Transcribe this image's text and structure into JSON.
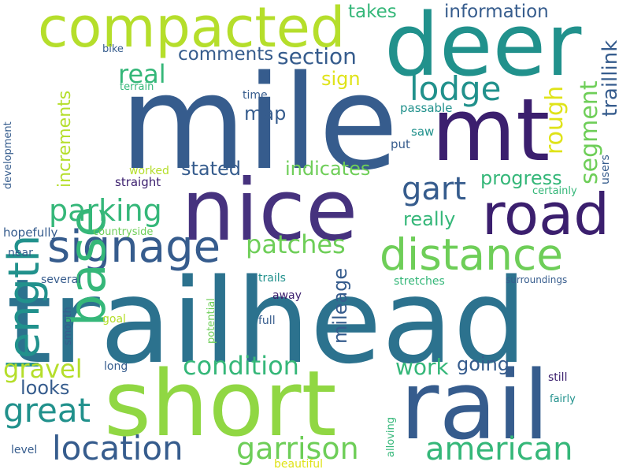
{
  "palette": {
    "navy": "#3b1f6e",
    "indigo": "#46327e",
    "blue": "#365c8d",
    "steel": "#2c728e",
    "teal": "#21918c",
    "green": "#35b779",
    "lime": "#6ece58",
    "yellowgreen": "#90d743",
    "yellow": "#b5de2b",
    "gold": "#dfe318",
    "background": "#ffffff"
  },
  "words": [
    {
      "text": "trailhead",
      "color": "steel"
    },
    {
      "text": "mile",
      "color": "blue"
    },
    {
      "text": "nice",
      "color": "indigo"
    },
    {
      "text": "short",
      "color": "yellowgreen"
    },
    {
      "text": "rail",
      "color": "blue"
    },
    {
      "text": "deer",
      "color": "teal"
    },
    {
      "text": "mt",
      "color": "navy"
    },
    {
      "text": "compacted",
      "color": "yellow"
    },
    {
      "text": "road",
      "color": "navy"
    },
    {
      "text": "signage",
      "color": "blue"
    },
    {
      "text": "distance",
      "color": "lime"
    },
    {
      "text": "length",
      "color": "teal"
    },
    {
      "text": "base",
      "color": "green"
    },
    {
      "text": "location",
      "color": "blue"
    },
    {
      "text": "american",
      "color": "green"
    },
    {
      "text": "garrison",
      "color": "lime"
    },
    {
      "text": "great",
      "color": "teal"
    },
    {
      "text": "parking",
      "color": "green"
    },
    {
      "text": "gart",
      "color": "blue"
    },
    {
      "text": "lodge",
      "color": "teal"
    },
    {
      "text": "condition",
      "color": "green"
    },
    {
      "text": "patches",
      "color": "lime"
    },
    {
      "text": "gravel",
      "color": "yellow"
    },
    {
      "text": "real",
      "color": "green"
    },
    {
      "text": "section",
      "color": "blue"
    },
    {
      "text": "segment",
      "color": "lime"
    },
    {
      "text": "rough",
      "color": "gold"
    },
    {
      "text": "comments",
      "color": "blue"
    },
    {
      "text": "information",
      "color": "blue"
    },
    {
      "text": "takes",
      "color": "green"
    },
    {
      "text": "traillink",
      "color": "blue"
    },
    {
      "text": "work",
      "color": "green"
    },
    {
      "text": "progress",
      "color": "green"
    },
    {
      "text": "indicates",
      "color": "lime"
    },
    {
      "text": "mileage",
      "color": "blue"
    },
    {
      "text": "looks",
      "color": "blue"
    },
    {
      "text": "going",
      "color": "blue"
    },
    {
      "text": "really",
      "color": "green"
    },
    {
      "text": "map",
      "color": "blue"
    },
    {
      "text": "stated",
      "color": "blue"
    },
    {
      "text": "sign",
      "color": "gold"
    },
    {
      "text": "increments",
      "color": "yellow"
    },
    {
      "text": "bike",
      "color": "blue"
    },
    {
      "text": "terrain",
      "color": "green"
    },
    {
      "text": "time",
      "color": "blue"
    },
    {
      "text": "passable",
      "color": "teal"
    },
    {
      "text": "saw",
      "color": "teal"
    },
    {
      "text": "put",
      "color": "blue"
    },
    {
      "text": "worked",
      "color": "yellow"
    },
    {
      "text": "straight",
      "color": "navy"
    },
    {
      "text": "certainly",
      "color": "green"
    },
    {
      "text": "users",
      "color": "blue"
    },
    {
      "text": "development",
      "color": "blue"
    },
    {
      "text": "hopefully",
      "color": "blue"
    },
    {
      "text": "countryside",
      "color": "lime"
    },
    {
      "text": "near",
      "color": "blue"
    },
    {
      "text": "several",
      "color": "blue"
    },
    {
      "text": "trails",
      "color": "teal"
    },
    {
      "text": "stretches",
      "color": "green"
    },
    {
      "text": "surroundings",
      "color": "blue"
    },
    {
      "text": "away",
      "color": "navy"
    },
    {
      "text": "full",
      "color": "blue"
    },
    {
      "text": "goal",
      "color": "yellow"
    },
    {
      "text": "smooth",
      "color": "blue"
    },
    {
      "text": "potential",
      "color": "lime"
    },
    {
      "text": "long",
      "color": "blue"
    },
    {
      "text": "still",
      "color": "navy"
    },
    {
      "text": "fairly",
      "color": "teal"
    },
    {
      "text": "alloving",
      "color": "green"
    },
    {
      "text": "level",
      "color": "blue"
    },
    {
      "text": "beautiful",
      "color": "gold"
    }
  ]
}
